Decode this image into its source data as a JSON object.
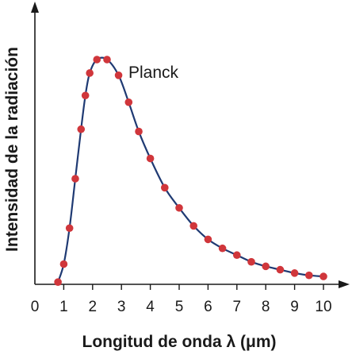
{
  "chart_data": {
    "type": "line",
    "xlabel": "Longitud de onda λ (μm)",
    "ylabel": "Intensidad de la radiación",
    "xlim": [
      0,
      10.8
    ],
    "ylim": [
      0,
      1.0
    ],
    "x_ticks": [
      "0",
      "1",
      "2",
      "3",
      "4",
      "5",
      "6",
      "7",
      "8",
      "9",
      "10"
    ],
    "y_ticks_shown": false,
    "grid": false,
    "curve_color": "#1f3a73",
    "point_color": "#d0363b",
    "series": [
      {
        "name": "Planck",
        "x": [
          0.8,
          1.0,
          1.2,
          1.4,
          1.6,
          1.75,
          1.9,
          2.15,
          2.5,
          2.9,
          3.25,
          3.6,
          4.0,
          4.5,
          5.0,
          5.5,
          6.0,
          6.5,
          7.0,
          7.5,
          8.0,
          8.5,
          9.0,
          9.5,
          10.0
        ],
        "y": [
          0.01,
          0.09,
          0.25,
          0.47,
          0.69,
          0.84,
          0.94,
          1.0,
          1.0,
          0.93,
          0.81,
          0.68,
          0.56,
          0.43,
          0.34,
          0.26,
          0.2,
          0.16,
          0.13,
          0.1,
          0.08,
          0.065,
          0.05,
          0.04,
          0.035
        ]
      }
    ]
  }
}
